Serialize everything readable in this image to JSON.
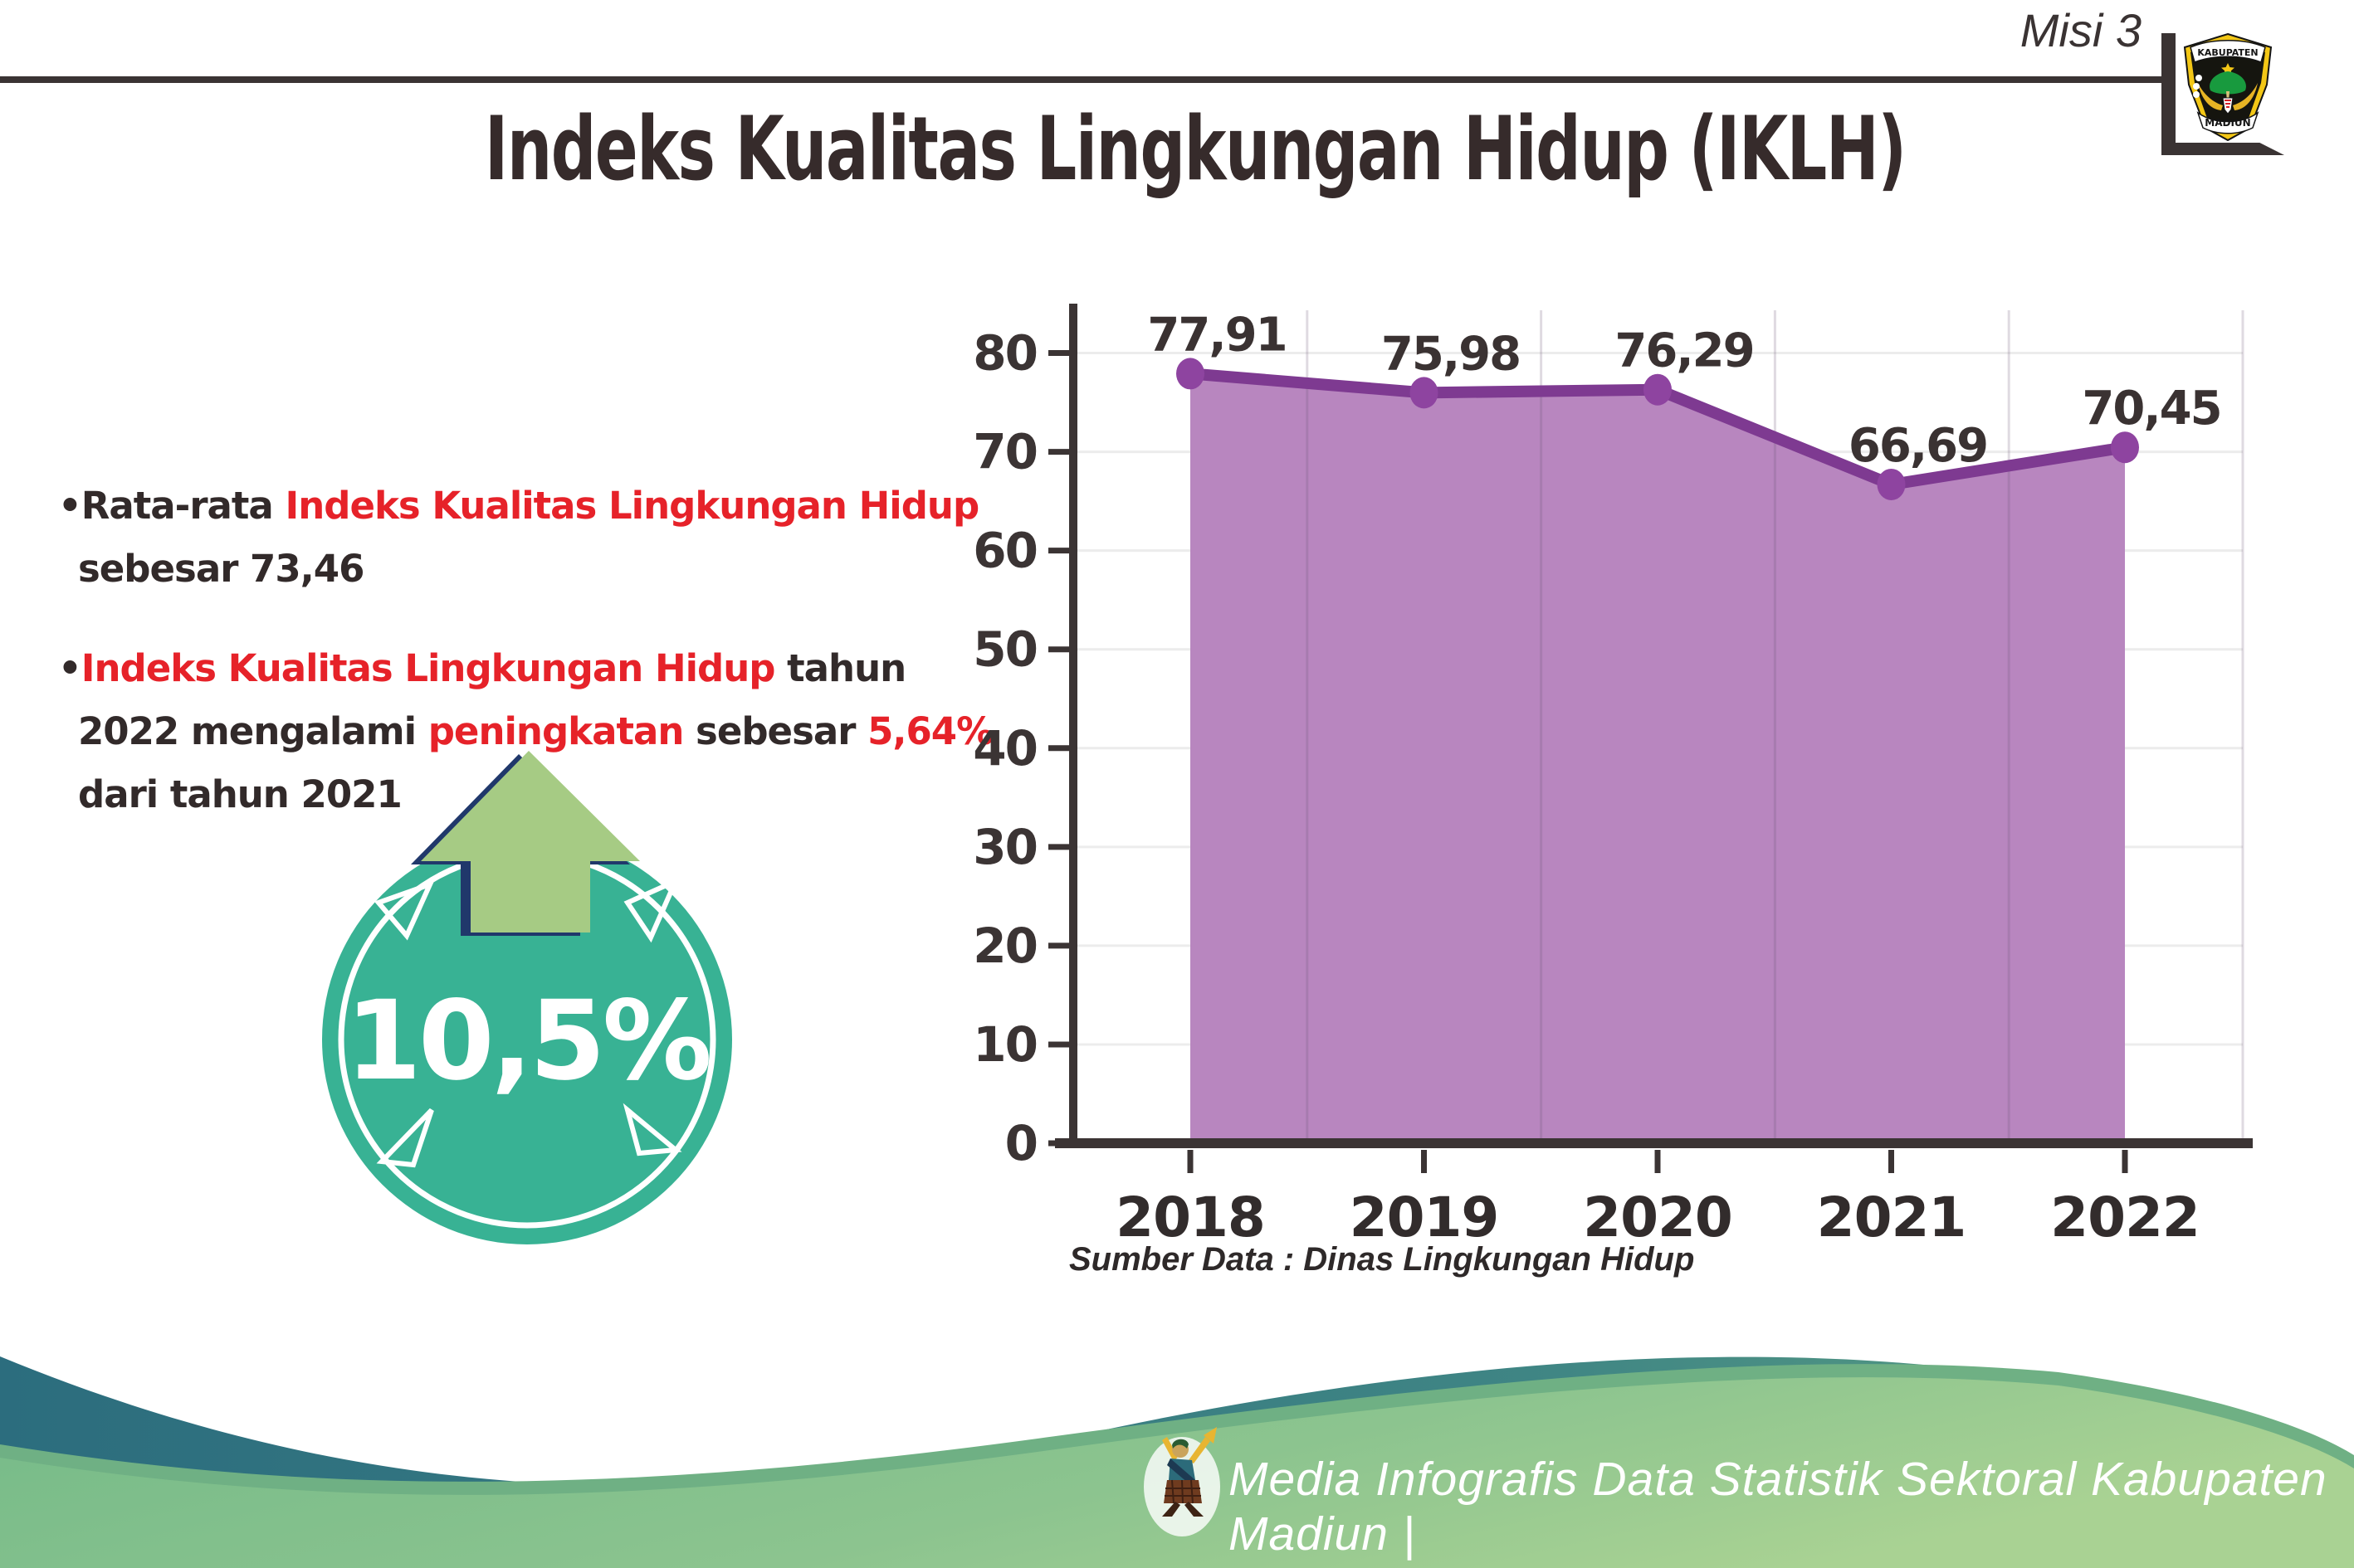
{
  "header": {
    "misi_label": "Misi 3",
    "logo": {
      "top_text": "KABUPATEN",
      "bottom_text": "MADIUN"
    }
  },
  "title": "Indeks Kualitas Lingkungan Hidup (IKLH)",
  "bullets": [
    {
      "marker": "•",
      "segments": [
        {
          "text": "Rata-rata ",
          "color": "dark"
        },
        {
          "text": "Indeks Kualitas Lingkungan Hidup",
          "color": "red"
        },
        {
          "text": " sebesar 73,46",
          "color": "dark"
        }
      ]
    },
    {
      "marker": "•",
      "segments": [
        {
          "text": "Indeks Kualitas Lingkungan Hidup",
          "color": "red"
        },
        {
          "text": " tahun 2022 mengalami ",
          "color": "dark"
        },
        {
          "text": "peningkatan",
          "color": "red"
        },
        {
          "text": " sebesar ",
          "color": "dark"
        },
        {
          "text": "5,64%",
          "color": "red"
        },
        {
          "text": " dari tahun 2021",
          "color": "dark"
        }
      ]
    }
  ],
  "badge": {
    "value": "10,5%",
    "direction": "up"
  },
  "chart_data": {
    "type": "area",
    "categories": [
      "2018",
      "2019",
      "2020",
      "2021",
      "2022"
    ],
    "values": [
      77.91,
      75.98,
      76.29,
      66.69,
      70.45
    ],
    "value_labels": [
      "77,91",
      "75,98",
      "76,29",
      "66,69",
      "70,45"
    ],
    "ylim": [
      0,
      80
    ],
    "yticks": [
      0,
      10,
      20,
      30,
      40,
      50,
      60,
      70,
      80
    ],
    "grid": true,
    "legend": "none",
    "line_color": "#7e3a91",
    "fill_color": "#b886bf",
    "marker_color": "#8e44a0"
  },
  "source_note": "Sumber Data : Dinas Lingkungan Hidup",
  "footer": {
    "text": "Media Infografis Data Statistik Sektoral Kabupaten Madiun |"
  },
  "colors": {
    "accent_red": "#e62229",
    "text_dark": "#322a2a",
    "badge_teal": "#38b294",
    "badge_arrow_green": "#a6cb84",
    "badge_arrow_shadow": "#20386b",
    "footer_teal": "#2c6d7e",
    "footer_green": "#8cc48f"
  }
}
